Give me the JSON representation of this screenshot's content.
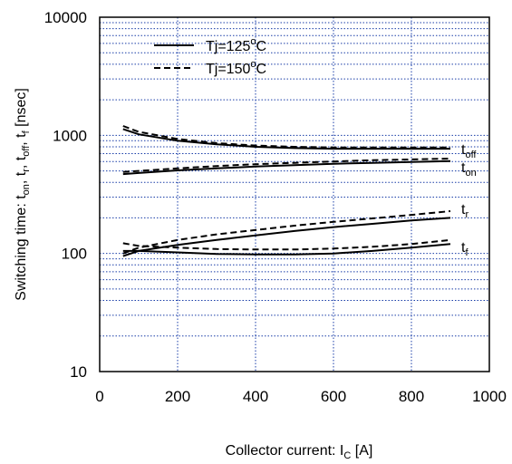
{
  "chart_data": {
    "type": "line",
    "title": "",
    "xlabel": {
      "main": "Collector current: I",
      "sub": "C",
      "unit": " [A]"
    },
    "ylabel": {
      "parts": [
        {
          "t": "Switching time: t",
          "s": false
        },
        {
          "t": "on",
          "s": true
        },
        {
          "t": ", t",
          "s": false
        },
        {
          "t": "r",
          "s": true
        },
        {
          "t": ", t",
          "s": false
        },
        {
          "t": "off",
          "s": true
        },
        {
          "t": ", t",
          "s": false
        },
        {
          "t": "f",
          "s": true
        },
        {
          "t": " [nsec]",
          "s": false
        }
      ]
    },
    "xlim": [
      0,
      1000
    ],
    "ylim": [
      10,
      10000
    ],
    "y_scale": "log",
    "grid": true,
    "x_ticks": [
      0,
      200,
      400,
      600,
      800,
      1000
    ],
    "x_tick_labels": [
      "0",
      "200",
      "400",
      "600",
      "800",
      "1000"
    ],
    "y_ticks": [
      10,
      100,
      1000,
      10000
    ],
    "y_tick_labels": [
      "10",
      "100",
      "1000",
      "10000"
    ],
    "legend": {
      "position": "top-left",
      "entries": [
        {
          "label_main": "Tj=125",
          "label_sup": "o",
          "label_unit": "C",
          "style": "solid"
        },
        {
          "label_main": "Tj=150",
          "label_sup": "o",
          "label_unit": "C",
          "style": "dashed"
        }
      ]
    },
    "series": [
      {
        "curve": "toff",
        "style": "solid",
        "x": [
          60,
          100,
          200,
          300,
          400,
          500,
          600,
          700,
          800,
          900
        ],
        "y": [
          1130,
          1020,
          900,
          840,
          800,
          780,
          770,
          770,
          770,
          770
        ]
      },
      {
        "curve": "toff",
        "style": "dashed",
        "x": [
          60,
          100,
          200,
          300,
          400,
          500,
          600,
          700,
          800,
          900
        ],
        "y": [
          1200,
          1070,
          930,
          860,
          820,
          800,
          790,
          790,
          790,
          790
        ]
      },
      {
        "curve": "ton",
        "style": "solid",
        "x": [
          60,
          100,
          200,
          300,
          400,
          500,
          600,
          700,
          800,
          900
        ],
        "y": [
          470,
          480,
          505,
          525,
          545,
          560,
          575,
          585,
          595,
          605
        ]
      },
      {
        "curve": "ton",
        "style": "dashed",
        "x": [
          60,
          100,
          200,
          300,
          400,
          500,
          600,
          700,
          800,
          900
        ],
        "y": [
          490,
          500,
          525,
          550,
          570,
          585,
          600,
          615,
          625,
          635
        ]
      },
      {
        "curve": "tr",
        "style": "solid",
        "x": [
          60,
          100,
          200,
          300,
          400,
          500,
          600,
          700,
          800,
          900
        ],
        "y": [
          95,
          105,
          118,
          130,
          142,
          155,
          167,
          178,
          190,
          200
        ]
      },
      {
        "curve": "tr",
        "style": "dashed",
        "x": [
          60,
          100,
          200,
          300,
          400,
          500,
          600,
          700,
          800,
          900
        ],
        "y": [
          100,
          112,
          130,
          145,
          158,
          172,
          185,
          198,
          212,
          228
        ]
      },
      {
        "curve": "tf",
        "style": "solid",
        "x": [
          60,
          100,
          200,
          300,
          400,
          500,
          600,
          700,
          800,
          900
        ],
        "y": [
          105,
          105,
          102,
          99,
          98,
          98,
          100,
          105,
          112,
          120
        ]
      },
      {
        "curve": "tf",
        "style": "dashed",
        "x": [
          60,
          100,
          200,
          300,
          400,
          500,
          600,
          700,
          800,
          900
        ],
        "y": [
          122,
          116,
          112,
          109,
          108,
          108,
          110,
          114,
          120,
          130
        ]
      }
    ],
    "series_labels": [
      {
        "main": "t",
        "sub": "off",
        "at_x": 900,
        "at_y": 770
      },
      {
        "main": "t",
        "sub": "on",
        "at_x": 900,
        "at_y": 540
      },
      {
        "main": "t",
        "sub": "r",
        "at_x": 900,
        "at_y": 240
      },
      {
        "main": "t",
        "sub": "f",
        "at_x": 900,
        "at_y": 115
      }
    ]
  }
}
